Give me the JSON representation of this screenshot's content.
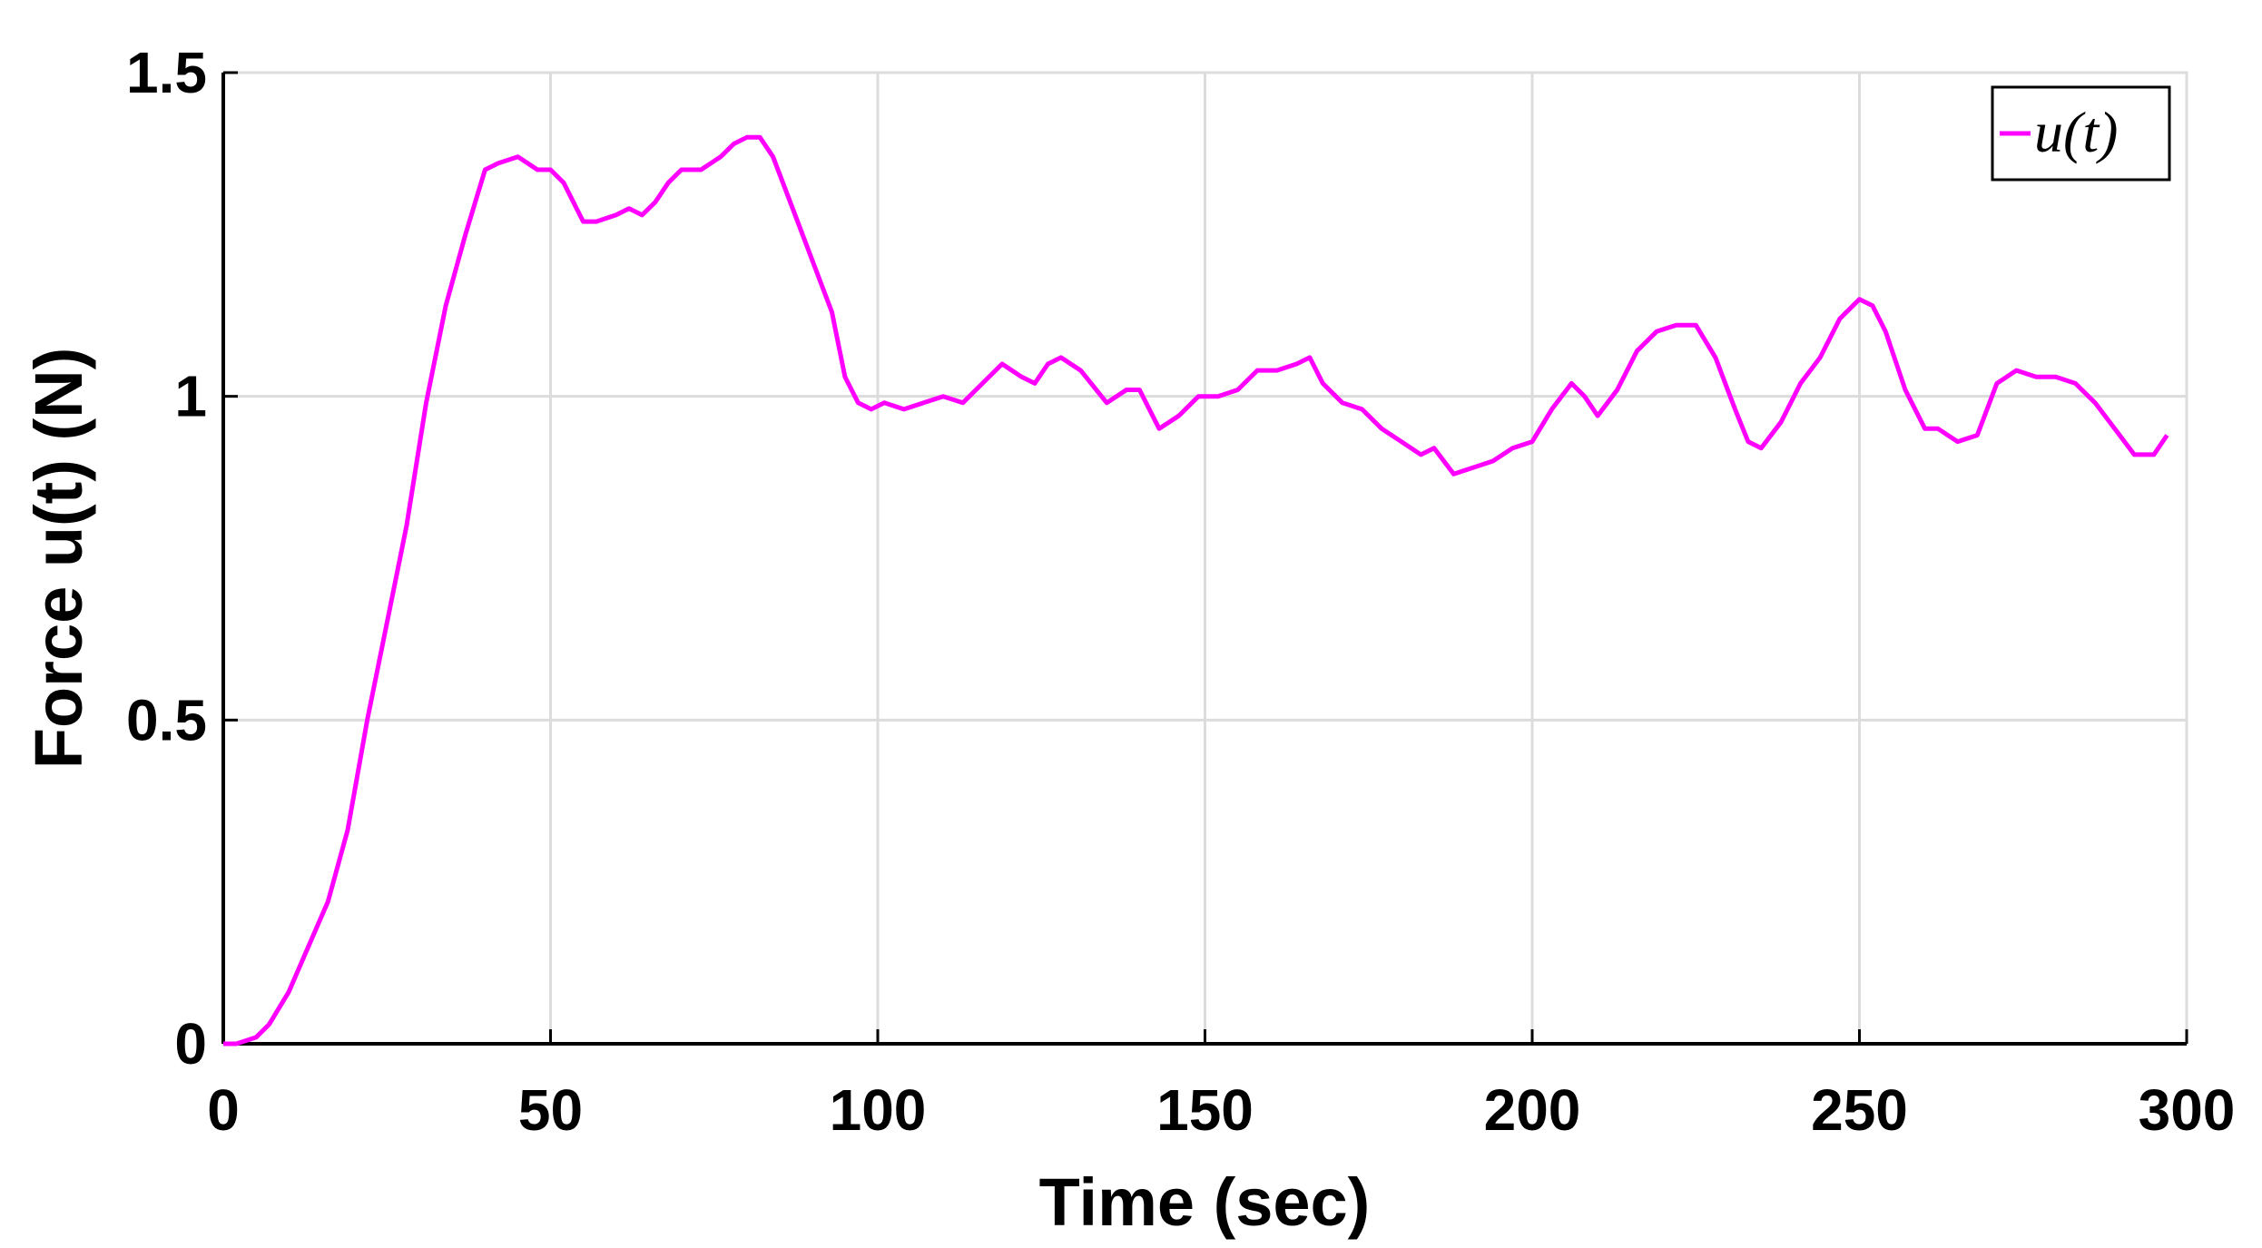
{
  "chart_data": {
    "type": "line",
    "xlabel": "Time (sec)",
    "ylabel": "Force u(t) (N)",
    "x": [
      0,
      2,
      5,
      7,
      10,
      13,
      16,
      19,
      22,
      25,
      28,
      31,
      34,
      37,
      40,
      42,
      45,
      48,
      50,
      52,
      55,
      57,
      60,
      62,
      64,
      66,
      68,
      70,
      73,
      76,
      78,
      80,
      82,
      84,
      87,
      90,
      93,
      95,
      97,
      99,
      101,
      104,
      107,
      110,
      113,
      116,
      119,
      122,
      124,
      126,
      128,
      131,
      135,
      138,
      140,
      143,
      146,
      149,
      152,
      155,
      158,
      161,
      164,
      166,
      168,
      171,
      174,
      177,
      180,
      183,
      185,
      188,
      191,
      194,
      197,
      200,
      203,
      206,
      208,
      210,
      213,
      216,
      219,
      222,
      225,
      228,
      231,
      233,
      235,
      238,
      241,
      244,
      247,
      250,
      252,
      254,
      257,
      260,
      262,
      265,
      268,
      271,
      274,
      277,
      280,
      283,
      286,
      289,
      292,
      295,
      297
    ],
    "series": [
      {
        "name": "u(t)",
        "color": "#ff00ff",
        "values": [
          0,
          0,
          0.01,
          0.03,
          0.08,
          0.15,
          0.22,
          0.33,
          0.5,
          0.65,
          0.8,
          0.99,
          1.14,
          1.25,
          1.35,
          1.36,
          1.37,
          1.35,
          1.35,
          1.33,
          1.27,
          1.27,
          1.28,
          1.29,
          1.28,
          1.3,
          1.33,
          1.35,
          1.35,
          1.37,
          1.39,
          1.4,
          1.4,
          1.37,
          1.29,
          1.21,
          1.13,
          1.03,
          0.99,
          0.98,
          0.99,
          0.98,
          0.99,
          1,
          0.99,
          1.02,
          1.05,
          1.03,
          1.02,
          1.05,
          1.06,
          1.04,
          0.99,
          1.01,
          1.01,
          0.95,
          0.97,
          1,
          1,
          1.01,
          1.04,
          1.04,
          1.05,
          1.06,
          1.02,
          0.99,
          0.98,
          0.95,
          0.93,
          0.91,
          0.92,
          0.88,
          0.89,
          0.9,
          0.92,
          0.93,
          0.98,
          1.02,
          1,
          0.97,
          1.01,
          1.07,
          1.1,
          1.11,
          1.11,
          1.06,
          0.98,
          0.93,
          0.92,
          0.96,
          1.02,
          1.06,
          1.12,
          1.15,
          1.14,
          1.1,
          1.01,
          0.95,
          0.95,
          0.93,
          0.94,
          1.02,
          1.04,
          1.03,
          1.03,
          1.02,
          0.99,
          0.95,
          0.91,
          0.91,
          0.94
        ]
      }
    ],
    "xlim": [
      0,
      300
    ],
    "xticks": [
      0,
      50,
      100,
      150,
      200,
      250,
      300
    ],
    "ylim": [
      0,
      1.5
    ],
    "yticks": [
      0,
      0.5,
      1,
      1.5
    ],
    "grid": true,
    "legend": "upper-right"
  }
}
